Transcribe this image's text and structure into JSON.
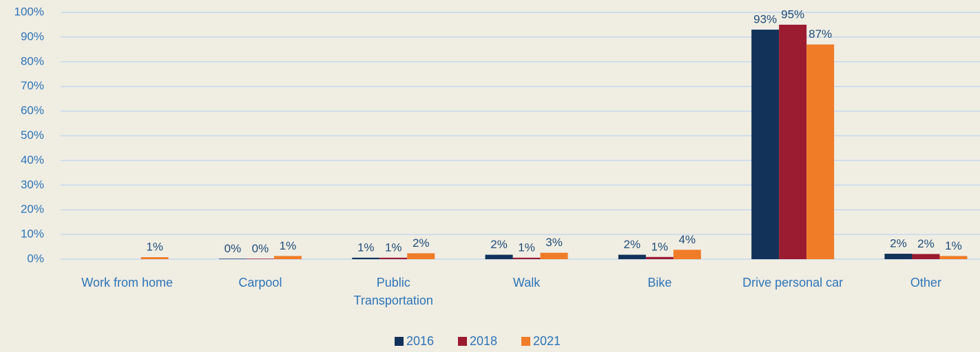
{
  "chart_data": {
    "type": "bar",
    "categories": [
      "Work from home",
      "Carpool",
      "Public Transportation",
      "Walk",
      "Bike",
      "Drive personal car",
      "Other"
    ],
    "series": [
      {
        "name": "2016",
        "color": "#12325a",
        "values": [
          null,
          0.2,
          0.6,
          1.8,
          1.8,
          93,
          2.2
        ],
        "value_labels": [
          null,
          "0%",
          "1%",
          "2%",
          "2%",
          "93%",
          "2%"
        ]
      },
      {
        "name": "2018",
        "color": "#9b1b30",
        "values": [
          null,
          0.2,
          0.6,
          0.6,
          0.9,
          95,
          2.1
        ],
        "value_labels": [
          null,
          "0%",
          "1%",
          "1%",
          "1%",
          "95%",
          "2%"
        ]
      },
      {
        "name": "2021",
        "color": "#f07c28",
        "values": [
          0.8,
          1.3,
          2.4,
          2.6,
          3.8,
          87,
          1.3
        ],
        "value_labels": [
          "1%",
          "1%",
          "2%",
          "3%",
          "4%",
          "87%",
          "1%"
        ]
      }
    ],
    "ylim": [
      0,
      100
    ],
    "yticks": [
      {
        "value": 0,
        "label": "0%"
      },
      {
        "value": 10,
        "label": "10%"
      },
      {
        "value": 20,
        "label": "20%"
      },
      {
        "value": 30,
        "label": "30%"
      },
      {
        "value": 40,
        "label": "40%"
      },
      {
        "value": 50,
        "label": "50%"
      },
      {
        "value": 60,
        "label": "60%"
      },
      {
        "value": 70,
        "label": "70%"
      },
      {
        "value": 80,
        "label": "80%"
      },
      {
        "value": 90,
        "label": "90%"
      },
      {
        "value": 100,
        "label": "100%"
      }
    ],
    "grid": true,
    "legend": "bottom"
  }
}
